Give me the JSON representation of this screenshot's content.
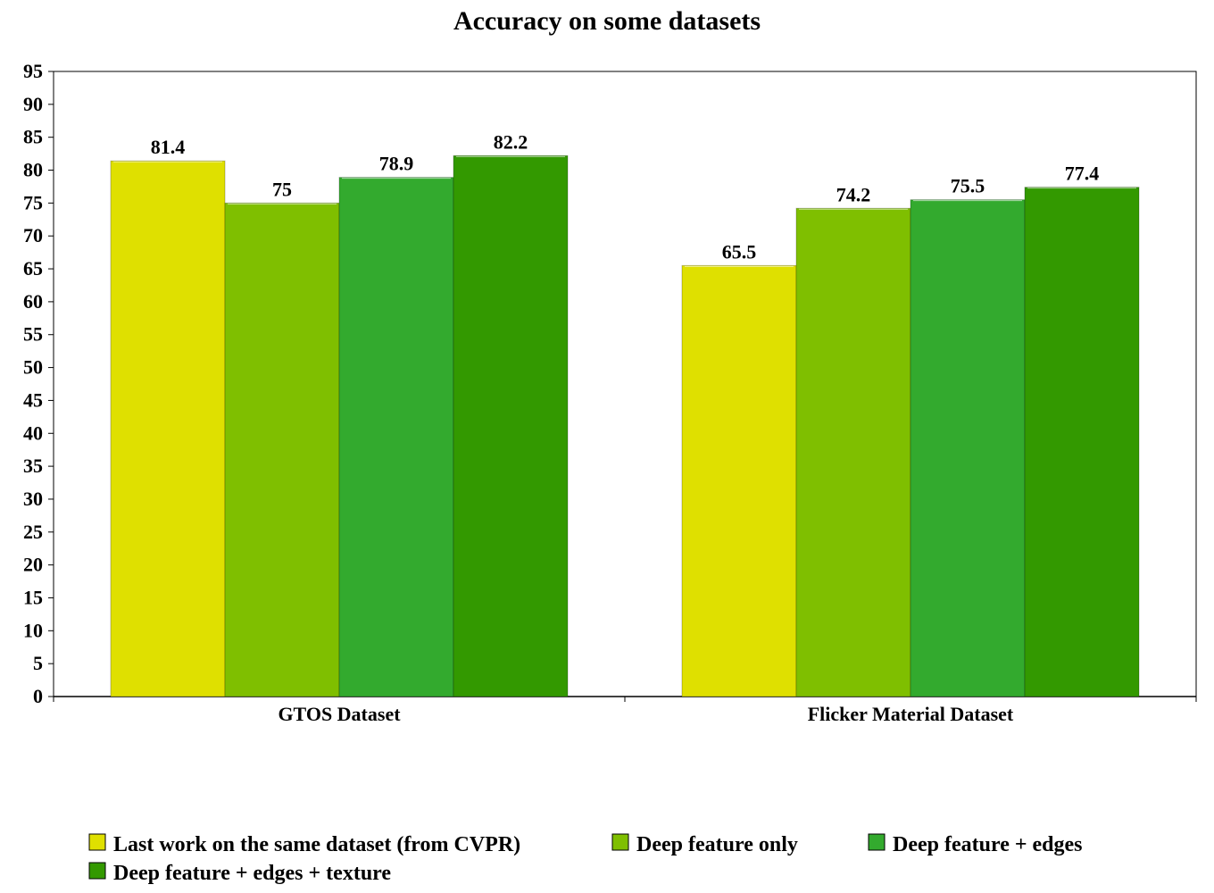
{
  "chart_data": {
    "type": "bar",
    "title": "Accuracy on some datasets",
    "xlabel": "",
    "ylabel": "",
    "categories": [
      "GTOS Dataset",
      "Flicker Material Dataset"
    ],
    "ylim": [
      0,
      95
    ],
    "yticks": [
      0,
      5,
      10,
      15,
      20,
      25,
      30,
      35,
      40,
      45,
      50,
      55,
      60,
      65,
      70,
      75,
      80,
      85,
      90,
      95
    ],
    "grid": false,
    "legend_position": "bottom",
    "data_labels": true,
    "series": [
      {
        "name": "Last work on the same dataset (from CVPR)",
        "values": [
          81.4,
          65.5
        ],
        "color": "#dfe000"
      },
      {
        "name": "Deep feature only",
        "values": [
          75,
          74.2
        ],
        "color": "#7fbf00"
      },
      {
        "name": "Deep feature + edges",
        "values": [
          78.9,
          75.5
        ],
        "color": "#33aa2e"
      },
      {
        "name": "Deep feature + edges + texture",
        "values": [
          82.2,
          77.4
        ],
        "color": "#339900"
      }
    ]
  }
}
